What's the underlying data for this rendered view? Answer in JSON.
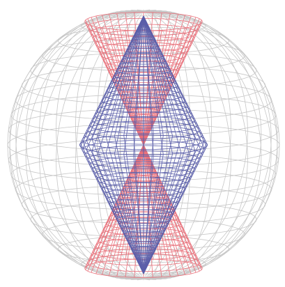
{
  "wireframes": [
    {
      "color": "#c6c6c6"
    },
    {
      "color": "#e8717b"
    },
    {
      "color": "#5b5fa9"
    }
  ]
}
